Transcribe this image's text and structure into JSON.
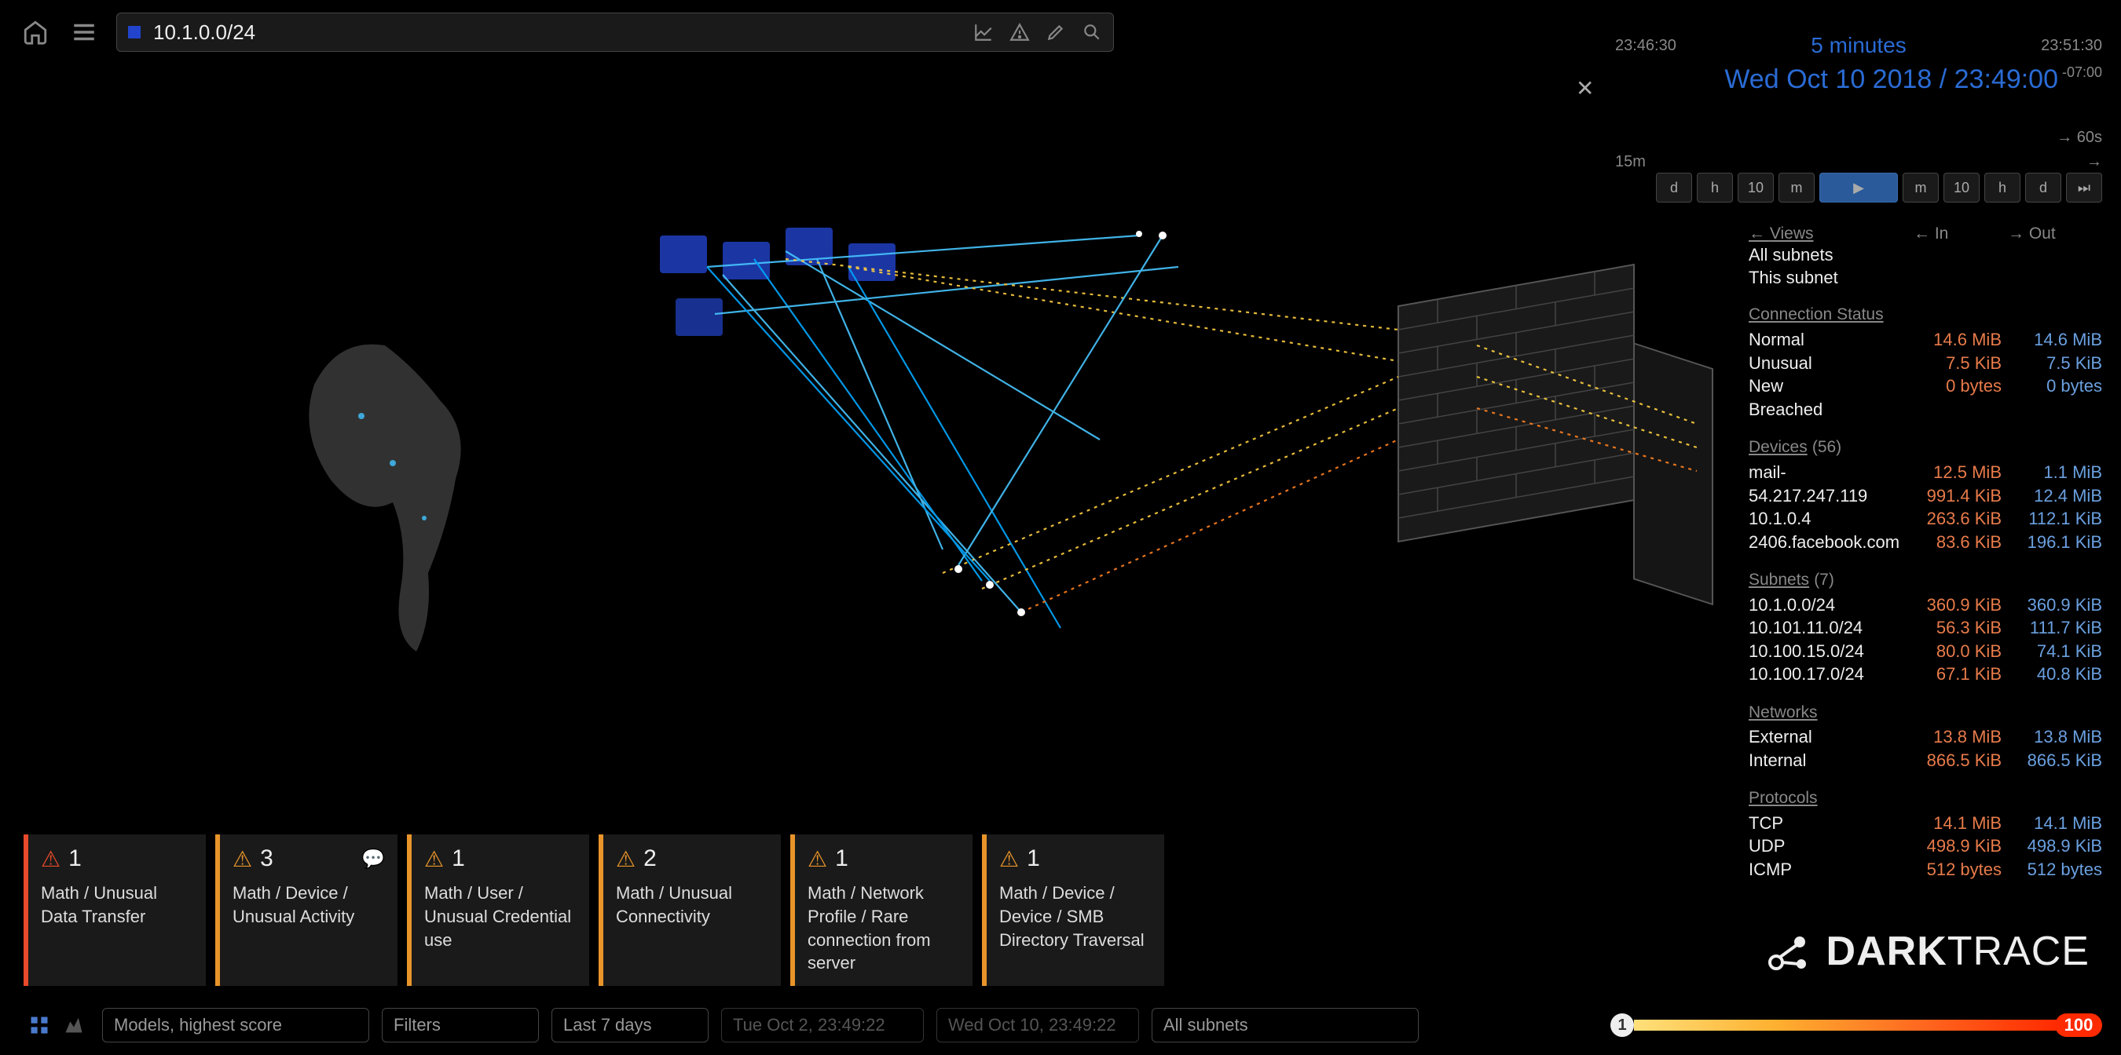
{
  "colors": {
    "bg": "#000000",
    "panel": "#1a1a1a",
    "border": "#444444",
    "text": "#cccccc",
    "text_bright": "#eeeeee",
    "text_dim": "#888888",
    "accent_blue": "#2a6bd4",
    "val_in": "#e87b4a",
    "val_out": "#6aa0e0",
    "alert_red": "#e84a2a",
    "alert_orange": "#e8942a",
    "gradient": [
      "#ffe07a",
      "#ffb030",
      "#ff6a20",
      "#ff2a00"
    ]
  },
  "topbar": {
    "search_value": "10.1.0.0/24"
  },
  "timeline": {
    "start": "23:46:30",
    "center": "5 minutes",
    "end": "23:51:30",
    "datetime": "Wed Oct 10 2018 / 23:49:00",
    "timezone": "-07:00",
    "step1": "60s",
    "step2": "15m",
    "buttons_left": [
      "d",
      "h",
      "10",
      "m"
    ],
    "play": "▶",
    "buttons_right": [
      "m",
      "10",
      "h",
      "d",
      "⏭"
    ]
  },
  "views": {
    "head": "Views",
    "items": [
      "All subnets",
      "This subnet"
    ],
    "in_label": "In",
    "out_label": "Out"
  },
  "connection_status": {
    "head": "Connection Status",
    "rows": [
      {
        "label": "Normal",
        "in": "14.6 MiB",
        "out": "14.6 MiB"
      },
      {
        "label": "Unusual",
        "in": "7.5 KiB",
        "out": "7.5 KiB"
      },
      {
        "label": "New",
        "in": "0 bytes",
        "out": "0 bytes"
      },
      {
        "label": "Breached",
        "in": "",
        "out": ""
      }
    ]
  },
  "devices": {
    "head": "Devices",
    "count": "(56)",
    "rows": [
      {
        "label": "mail-",
        "in": "12.5 MiB",
        "out": "1.1 MiB"
      },
      {
        "label": "54.217.247.119",
        "in": "991.4 KiB",
        "out": "12.4 MiB"
      },
      {
        "label": "10.1.0.4",
        "in": "263.6 KiB",
        "out": "112.1 KiB"
      },
      {
        "label": "2406.facebook.com",
        "in": "83.6 KiB",
        "out": "196.1 KiB"
      }
    ]
  },
  "subnets": {
    "head": "Subnets",
    "count": "(7)",
    "rows": [
      {
        "label": "10.1.0.0/24",
        "in": "360.9 KiB",
        "out": "360.9 KiB"
      },
      {
        "label": "10.101.11.0/24",
        "in": "56.3 KiB",
        "out": "111.7 KiB"
      },
      {
        "label": "10.100.15.0/24",
        "in": "80.0 KiB",
        "out": "74.1 KiB"
      },
      {
        "label": "10.100.17.0/24",
        "in": "67.1 KiB",
        "out": "40.8 KiB"
      }
    ]
  },
  "networks": {
    "head": "Networks",
    "rows": [
      {
        "label": "External",
        "in": "13.8 MiB",
        "out": "13.8 MiB"
      },
      {
        "label": "Internal",
        "in": "866.5 KiB",
        "out": "866.5 KiB"
      }
    ]
  },
  "protocols": {
    "head": "Protocols",
    "rows": [
      {
        "label": "TCP",
        "in": "14.1 MiB",
        "out": "14.1 MiB"
      },
      {
        "label": "UDP",
        "in": "498.9 KiB",
        "out": "498.9 KiB"
      },
      {
        "label": "ICMP",
        "in": "512 bytes",
        "out": "512 bytes"
      }
    ]
  },
  "threats": [
    {
      "count": "1",
      "label": "Math / Unusual Data Transfer",
      "color": "#e84a2a",
      "comment": false
    },
    {
      "count": "3",
      "label": "Math / Device / Unusual Activity",
      "color": "#e8942a",
      "comment": true
    },
    {
      "count": "1",
      "label": "Math / User / Unusual Credential use",
      "color": "#e8942a",
      "comment": false
    },
    {
      "count": "2",
      "label": "Math / Unusual Connectivity",
      "color": "#e8942a",
      "comment": false
    },
    {
      "count": "1",
      "label": "Math / Network Profile / Rare connection from server",
      "color": "#e8942a",
      "comment": false
    },
    {
      "count": "1",
      "label": "Math / Device / Device / SMB Directory Traversal",
      "color": "#e8942a",
      "comment": false
    }
  ],
  "bottombar": {
    "sort": "Models, highest score",
    "filters": "Filters",
    "range": "Last 7 days",
    "from": "Tue Oct 2, 23:49:22",
    "to": "Wed Oct 10, 23:49:22",
    "scope": "All subnets",
    "sev_min": "1",
    "sev_max": "100"
  },
  "logo": {
    "a": "DARK",
    "b": "TRACE"
  },
  "viz": {
    "type": "network",
    "description": "3D threat visualizer showing device cluster, firewall wall, external globe",
    "line_colors": [
      "#48c6ff",
      "#00a8ff",
      "#ffd040",
      "#ff8020"
    ],
    "node_color": "#2244cc",
    "globe_color": "#3a3a3a",
    "wall_color": "#3a3a3a"
  }
}
